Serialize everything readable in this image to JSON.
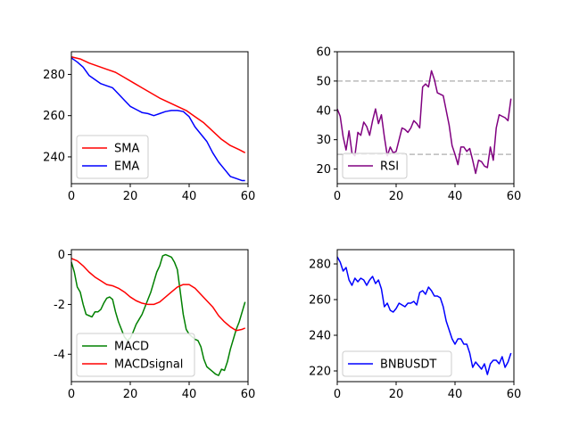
{
  "chart_data": [
    {
      "type": "line",
      "xlim": [
        0,
        60
      ],
      "ylim": [
        227,
        291
      ],
      "xticks": [
        0,
        20,
        40,
        60
      ],
      "yticks": [
        240,
        260,
        280
      ],
      "legend_loc": "lower-left",
      "grid": false,
      "series": [
        {
          "name": "SMA",
          "color": "#ff0000",
          "x": [
            0,
            3,
            6,
            9,
            12,
            15,
            18,
            21,
            24,
            27,
            30,
            33,
            36,
            39,
            42,
            45,
            48,
            51,
            54,
            57,
            59
          ],
          "values": [
            288.5,
            287.5,
            285.5,
            284,
            282.5,
            281,
            278.5,
            276,
            273.5,
            271,
            268.5,
            266.5,
            264.5,
            262.5,
            259.5,
            256.5,
            252.5,
            248.5,
            245.5,
            243.5,
            242
          ]
        },
        {
          "name": "EMA",
          "color": "#0000ff",
          "x": [
            0,
            2,
            4,
            6,
            8,
            10,
            12,
            14,
            16,
            18,
            20,
            22,
            24,
            26,
            28,
            30,
            32,
            34,
            36,
            38,
            40,
            42,
            44,
            46,
            48,
            50,
            52,
            54,
            56,
            58,
            59
          ],
          "values": [
            288,
            286,
            283.5,
            279.5,
            277.5,
            275.5,
            274.5,
            273.5,
            270.5,
            267.5,
            264.5,
            263,
            261.5,
            261,
            260,
            261,
            262,
            262.5,
            262.5,
            262,
            259.5,
            254.5,
            251,
            247.5,
            242,
            237.5,
            234,
            230.5,
            229.5,
            228.5,
            228.5
          ]
        }
      ]
    },
    {
      "type": "line",
      "xlim": [
        0,
        60
      ],
      "ylim": [
        15,
        60
      ],
      "xticks": [
        0,
        20,
        40,
        60
      ],
      "yticks": [
        20,
        30,
        40,
        50,
        60
      ],
      "legend_loc": "lower-left",
      "grid": false,
      "hlines": [
        {
          "y": 50,
          "color": "#bbbbbb"
        },
        {
          "y": 25,
          "color": "#bbbbbb"
        }
      ],
      "series": [
        {
          "name": "RSI",
          "color": "#800080",
          "x": [
            0,
            1,
            2,
            3,
            4,
            5,
            6,
            7,
            8,
            9,
            10,
            11,
            12,
            13,
            14,
            15,
            16,
            17,
            18,
            19,
            20,
            21,
            22,
            23,
            24,
            25,
            26,
            27,
            28,
            29,
            30,
            31,
            32,
            33,
            34,
            35,
            36,
            37,
            38,
            39,
            40,
            41,
            42,
            43,
            44,
            45,
            46,
            47,
            48,
            49,
            50,
            51,
            52,
            53,
            54,
            55,
            56,
            57,
            58,
            59
          ],
          "values": [
            40.5,
            38,
            31,
            26.5,
            33,
            25.5,
            24.5,
            32.5,
            31.5,
            36,
            34.5,
            31.5,
            36.5,
            40.5,
            35.5,
            38.5,
            31,
            24.5,
            27.5,
            25.5,
            26,
            30,
            34,
            33.5,
            32.5,
            34,
            36.5,
            35.5,
            34,
            48,
            49,
            48,
            53.5,
            50.5,
            46,
            45.5,
            45,
            40,
            35,
            28,
            25,
            21.5,
            27.5,
            27.5,
            26,
            27,
            23,
            18.5,
            23,
            22.5,
            21,
            20.5,
            27.5,
            23,
            34,
            38.5,
            38,
            37.5,
            36.5,
            44
          ]
        }
      ]
    },
    {
      "type": "line",
      "xlim": [
        0,
        60
      ],
      "ylim": [
        -5.1,
        0.2
      ],
      "xticks": [
        0,
        20,
        40,
        60
      ],
      "yticks": [
        -4,
        -2,
        0
      ],
      "legend_loc": "lower-left",
      "grid": false,
      "series": [
        {
          "name": "MACD",
          "color": "#008000",
          "x": [
            0,
            1,
            2,
            3,
            4,
            5,
            6,
            7,
            8,
            9,
            10,
            11,
            12,
            13,
            14,
            15,
            16,
            17,
            18,
            19,
            20,
            21,
            22,
            23,
            24,
            25,
            26,
            27,
            28,
            29,
            30,
            31,
            32,
            33,
            34,
            35,
            36,
            37,
            38,
            39,
            40,
            41,
            42,
            43,
            44,
            45,
            46,
            47,
            48,
            49,
            50,
            51,
            52,
            53,
            54,
            55,
            56,
            57,
            58,
            59
          ],
          "values": [
            -0.3,
            -0.7,
            -1.3,
            -1.5,
            -2.0,
            -2.4,
            -2.45,
            -2.5,
            -2.3,
            -2.3,
            -2.2,
            -1.95,
            -1.75,
            -1.7,
            -1.8,
            -2.3,
            -2.7,
            -3.0,
            -3.3,
            -3.45,
            -3.35,
            -3.1,
            -2.8,
            -2.6,
            -2.4,
            -2.1,
            -1.8,
            -1.5,
            -1.1,
            -0.7,
            -0.45,
            -0.05,
            0.0,
            -0.05,
            -0.1,
            -0.3,
            -0.6,
            -1.5,
            -2.4,
            -3.0,
            -3.2,
            -3.3,
            -3.4,
            -3.45,
            -3.7,
            -4.2,
            -4.5,
            -4.6,
            -4.7,
            -4.8,
            -4.85,
            -4.6,
            -4.65,
            -4.3,
            -3.8,
            -3.4,
            -3.0,
            -2.7,
            -2.3,
            -1.9
          ]
        },
        {
          "name": "MACDsignal",
          "color": "#ff0000",
          "x": [
            0,
            2,
            4,
            6,
            8,
            10,
            12,
            14,
            16,
            18,
            20,
            22,
            24,
            26,
            28,
            30,
            32,
            34,
            36,
            38,
            40,
            42,
            44,
            46,
            48,
            50,
            52,
            54,
            56,
            58,
            59
          ],
          "values": [
            -0.15,
            -0.25,
            -0.45,
            -0.7,
            -0.9,
            -1.05,
            -1.2,
            -1.25,
            -1.35,
            -1.5,
            -1.7,
            -1.85,
            -1.95,
            -2.0,
            -2.0,
            -1.9,
            -1.7,
            -1.5,
            -1.3,
            -1.2,
            -1.2,
            -1.35,
            -1.6,
            -1.85,
            -2.1,
            -2.45,
            -2.7,
            -2.9,
            -3.05,
            -3.0,
            -2.95
          ]
        }
      ]
    },
    {
      "type": "line",
      "xlim": [
        0,
        60
      ],
      "ylim": [
        214,
        288
      ],
      "xticks": [
        0,
        20,
        40,
        60
      ],
      "yticks": [
        220,
        240,
        260,
        280
      ],
      "legend_loc": "lower-left",
      "grid": false,
      "series": [
        {
          "name": "BNBUSDT",
          "color": "#0000ff",
          "x": [
            0,
            1,
            2,
            3,
            4,
            5,
            6,
            7,
            8,
            9,
            10,
            11,
            12,
            13,
            14,
            15,
            16,
            17,
            18,
            19,
            20,
            21,
            22,
            23,
            24,
            25,
            26,
            27,
            28,
            29,
            30,
            31,
            32,
            33,
            34,
            35,
            36,
            37,
            38,
            39,
            40,
            41,
            42,
            43,
            44,
            45,
            46,
            47,
            48,
            49,
            50,
            51,
            52,
            53,
            54,
            55,
            56,
            57,
            58,
            59
          ],
          "values": [
            284,
            281,
            276,
            278,
            271,
            268,
            272,
            270,
            272,
            271,
            268,
            271,
            273,
            269,
            271,
            266,
            256,
            258,
            254,
            253,
            255,
            258,
            257,
            256,
            258,
            258,
            259,
            257,
            264,
            265,
            263,
            267,
            265,
            262,
            262,
            261,
            256,
            248,
            243,
            238,
            235,
            238,
            238,
            235,
            235,
            230,
            222,
            225,
            223,
            221,
            224,
            218,
            224,
            226,
            226,
            224,
            228,
            222,
            225,
            230
          ]
        }
      ]
    }
  ]
}
